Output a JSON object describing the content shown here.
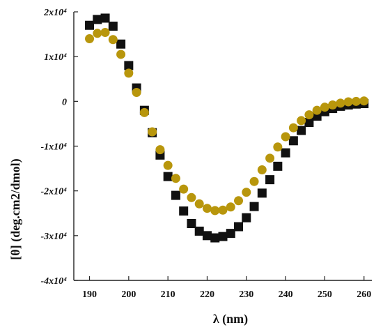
{
  "chart_data": {
    "type": "scatter",
    "xlabel": "λ  (nm)",
    "ylabel": "[θ]  (deg.cm2/dmol)",
    "xlim": [
      186,
      262
    ],
    "ylim": [
      -40000,
      20000
    ],
    "x_ticks": [
      190,
      200,
      210,
      220,
      230,
      240,
      250,
      260
    ],
    "x_tick_labels": [
      "190",
      "200",
      "210",
      "220",
      "230",
      "240",
      "250",
      "260"
    ],
    "y_ticks": [
      20000,
      10000,
      0,
      -10000,
      -20000,
      -30000,
      -40000
    ],
    "y_tick_labels": [
      "2x10⁴",
      "1x10⁴",
      "0",
      "-1x10⁴",
      "-2x10⁴",
      "-3x10⁴",
      "-4x10⁴"
    ],
    "grid": false,
    "legend": "none",
    "series": [
      {
        "marker": "square",
        "color": "#111111",
        "x": [
          190,
          192,
          194,
          196,
          198,
          200,
          202,
          204,
          206,
          208,
          210,
          212,
          214,
          216,
          218,
          220,
          222,
          224,
          226,
          228,
          230,
          232,
          234,
          236,
          238,
          240,
          242,
          244,
          246,
          248,
          250,
          252,
          254,
          256,
          258,
          260
        ],
        "y": [
          17000,
          18300,
          18600,
          16800,
          12800,
          8000,
          3000,
          -2000,
          -7000,
          -12000,
          -16800,
          -21000,
          -24500,
          -27300,
          -29000,
          -30000,
          -30500,
          -30200,
          -29500,
          -28000,
          -26000,
          -23500,
          -20500,
          -17500,
          -14500,
          -11500,
          -8800,
          -6500,
          -4700,
          -3300,
          -2300,
          -1600,
          -1100,
          -800,
          -600,
          -500
        ]
      },
      {
        "marker": "circle",
        "color": "#b8960c",
        "x": [
          190,
          192,
          194,
          196,
          198,
          200,
          202,
          204,
          206,
          208,
          210,
          212,
          214,
          216,
          218,
          220,
          222,
          224,
          226,
          228,
          230,
          232,
          234,
          236,
          238,
          240,
          242,
          244,
          246,
          248,
          250,
          252,
          254,
          256,
          258,
          260
        ],
        "y": [
          14000,
          15200,
          15400,
          13800,
          10500,
          6300,
          2000,
          -2500,
          -6800,
          -10800,
          -14300,
          -17200,
          -19600,
          -21500,
          -22900,
          -23900,
          -24400,
          -24300,
          -23600,
          -22200,
          -20300,
          -17900,
          -15300,
          -12700,
          -10200,
          -7900,
          -5900,
          -4300,
          -3000,
          -2000,
          -1300,
          -800,
          -400,
          -100,
          0,
          100
        ]
      }
    ]
  }
}
